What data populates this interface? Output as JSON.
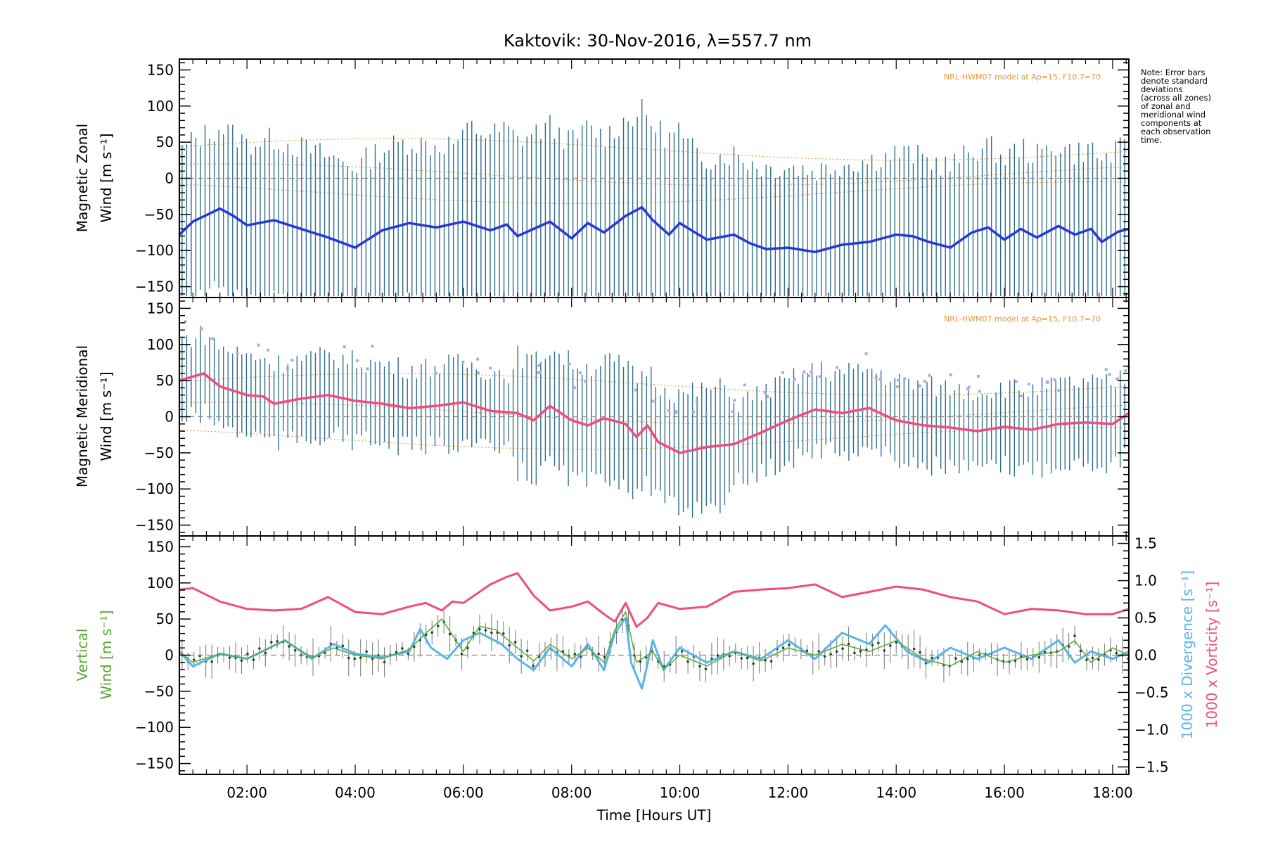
{
  "chart_data": {
    "type": "line",
    "title": "Kaktovik: 30-Nov-2016, λ=557.7 nm",
    "xlabel": "Time [Hours UT]",
    "x_ticks": [
      "02:00",
      "04:00",
      "06:00",
      "08:00",
      "10:00",
      "12:00",
      "14:00",
      "16:00",
      "18:00"
    ],
    "xlim": [
      0.75,
      18.3
    ],
    "note": [
      "Note: Error bars",
      "denote standard",
      "deviations",
      "(across all zones)",
      "of zonal and",
      "meridional wind",
      "components at",
      "each observation",
      "time."
    ],
    "panels": [
      {
        "id": "zonal",
        "ylabel_lines": [
          "Magnetic Zonal",
          "Wind [m s⁻¹]"
        ],
        "ylim": [
          -165,
          165
        ],
        "y_ticks": [
          150,
          100,
          50,
          0,
          -50,
          -100,
          -150
        ],
        "model_note": "NRL-HWM07 model at Ap=15, F10.7=70",
        "series": [
          {
            "color": "#2638d8",
            "x": [
              0.75,
              1.0,
              1.5,
              1.75,
              2.0,
              2.5,
              3.0,
              3.5,
              4.0,
              4.5,
              5.0,
              5.5,
              6.0,
              6.5,
              6.8,
              7.0,
              7.3,
              7.6,
              8.0,
              8.3,
              8.6,
              9.0,
              9.3,
              9.5,
              9.8,
              10.0,
              10.5,
              11.0,
              11.3,
              11.6,
              12.0,
              12.5,
              13.0,
              13.5,
              14.0,
              14.3,
              14.6,
              15.0,
              15.4,
              15.7,
              16.0,
              16.3,
              16.6,
              17.0,
              17.3,
              17.6,
              17.8,
              18.1,
              18.3
            ],
            "values": [
              -78,
              -60,
              -42,
              -52,
              -65,
              -58,
              -70,
              -82,
              -96,
              -72,
              -62,
              -68,
              -60,
              -72,
              -64,
              -80,
              -70,
              -60,
              -83,
              -62,
              -75,
              -52,
              -40,
              -58,
              -78,
              -62,
              -85,
              -78,
              -90,
              -98,
              -96,
              -102,
              -92,
              -88,
              -78,
              -80,
              -88,
              -96,
              -75,
              -68,
              -85,
              -70,
              -82,
              -66,
              -78,
              -70,
              -88,
              -74,
              -70
            ]
          }
        ]
      },
      {
        "id": "meridional",
        "ylabel_lines": [
          "Magnetic Meridional",
          "Wind [m s⁻¹]"
        ],
        "ylim": [
          -165,
          165
        ],
        "y_ticks": [
          150,
          100,
          50,
          0,
          -50,
          -100,
          -150
        ],
        "model_note": "NRL-HWM07 model at Ap=15, F10.7=70",
        "series": [
          {
            "color": "#f24b7d",
            "x": [
              0.75,
              1.2,
              1.5,
              2.0,
              2.3,
              2.5,
              3.0,
              3.5,
              4.0,
              4.5,
              5.0,
              5.5,
              6.0,
              6.5,
              7.0,
              7.3,
              7.6,
              8.0,
              8.3,
              8.6,
              9.0,
              9.2,
              9.4,
              9.6,
              10.0,
              10.5,
              11.0,
              11.5,
              12.0,
              12.5,
              13.0,
              13.5,
              14.0,
              14.5,
              15.0,
              15.5,
              16.0,
              16.5,
              17.0,
              17.5,
              18.0,
              18.3
            ],
            "values": [
              50,
              60,
              42,
              30,
              28,
              18,
              25,
              30,
              22,
              18,
              12,
              15,
              20,
              8,
              5,
              -5,
              15,
              -5,
              -12,
              -2,
              -10,
              -28,
              -12,
              -35,
              -50,
              -42,
              -38,
              -22,
              -5,
              10,
              5,
              12,
              -5,
              -12,
              -15,
              -20,
              -14,
              -18,
              -10,
              -8,
              -10,
              5
            ]
          }
        ]
      },
      {
        "id": "vertical",
        "ylabel_lines": [
          "Vertical",
          "Wind [m s⁻¹]"
        ],
        "ylabel_color": "#5aa832",
        "ylim": [
          -165,
          165
        ],
        "y_ticks": [
          150,
          100,
          50,
          0,
          -50,
          -100,
          -150
        ],
        "right_axis": {
          "labels": [
            "1000 x Divergence [s⁻¹]",
            "1000 x Vorticity [s⁻¹]"
          ],
          "label_colors": [
            "#5ab4e6",
            "#f24b7d"
          ],
          "ylim": [
            -1.6,
            1.6
          ],
          "ticks": [
            "1.5",
            "1.0",
            "0.5",
            "0.0",
            "−0.5",
            "−1.0",
            "−1.5"
          ],
          "tick_values": [
            1.5,
            1.0,
            0.5,
            0.0,
            -0.5,
            -1.0,
            -1.5
          ]
        },
        "series": [
          {
            "color": "#f24b7d",
            "axis": "right",
            "x": [
              0.75,
              1.0,
              1.5,
              2.0,
              2.5,
              3.0,
              3.5,
              4.0,
              4.5,
              5.0,
              5.3,
              5.6,
              5.8,
              6.0,
              6.5,
              6.8,
              7.0,
              7.3,
              7.6,
              8.0,
              8.3,
              8.6,
              8.8,
              9.0,
              9.2,
              9.4,
              9.6,
              10.0,
              10.5,
              11.0,
              11.5,
              12.0,
              12.5,
              13.0,
              13.5,
              14.0,
              14.5,
              15.0,
              15.5,
              16.0,
              16.5,
              17.0,
              17.5,
              18.0,
              18.3
            ],
            "values": [
              0.88,
              0.9,
              0.72,
              0.62,
              0.6,
              0.62,
              0.78,
              0.58,
              0.55,
              0.65,
              0.7,
              0.6,
              0.72,
              0.7,
              0.95,
              1.05,
              1.1,
              0.8,
              0.6,
              0.65,
              0.72,
              0.55,
              0.45,
              0.7,
              0.38,
              0.5,
              0.7,
              0.62,
              0.65,
              0.85,
              0.88,
              0.9,
              0.95,
              0.78,
              0.85,
              0.92,
              0.88,
              0.78,
              0.72,
              0.55,
              0.62,
              0.6,
              0.55,
              0.55,
              0.62
            ]
          },
          {
            "color": "#5ab4e6",
            "axis": "right",
            "x": [
              0.75,
              1.0,
              1.5,
              2.0,
              2.7,
              3.2,
              3.6,
              4.0,
              4.5,
              5.0,
              5.2,
              5.4,
              5.7,
              6.0,
              6.3,
              6.7,
              7.0,
              7.3,
              7.6,
              8.0,
              8.3,
              8.6,
              8.8,
              9.0,
              9.1,
              9.3,
              9.5,
              9.7,
              10.0,
              10.5,
              11.0,
              11.5,
              12.0,
              12.5,
              13.0,
              13.5,
              13.8,
              14.2,
              14.6,
              15.0,
              15.5,
              16.0,
              16.5,
              17.0,
              17.3,
              17.6,
              18.0,
              18.3
            ],
            "values": [
              0.05,
              -0.15,
              0.02,
              -0.05,
              0.2,
              -0.05,
              0.15,
              0.02,
              -0.03,
              0.05,
              0.35,
              0.1,
              -0.05,
              0.2,
              0.3,
              0.15,
              -0.05,
              -0.2,
              0.1,
              -0.15,
              0.15,
              -0.2,
              0.3,
              0.5,
              -0.1,
              -0.45,
              0.2,
              -0.2,
              0.1,
              -0.1,
              0.05,
              -0.05,
              0.2,
              -0.05,
              0.3,
              0.15,
              0.4,
              0.05,
              -0.1,
              0.1,
              -0.05,
              0.1,
              -0.05,
              0.2,
              -0.1,
              0.05,
              -0.05,
              0.05
            ]
          },
          {
            "color": "#5aa832",
            "axis": "left",
            "x": [
              0.75,
              1.0,
              1.5,
              2.0,
              2.7,
              3.2,
              3.6,
              4.0,
              4.5,
              5.0,
              5.3,
              5.6,
              6.0,
              6.3,
              6.6,
              7.0,
              7.3,
              7.6,
              8.0,
              8.3,
              8.6,
              8.8,
              9.0,
              9.2,
              9.5,
              9.7,
              10.0,
              10.5,
              11.0,
              11.5,
              12.0,
              12.5,
              13.0,
              13.5,
              14.0,
              14.5,
              15.0,
              15.5,
              16.0,
              16.5,
              17.0,
              17.3,
              17.6,
              18.0,
              18.3
            ],
            "values": [
              5,
              -10,
              2,
              -5,
              20,
              -3,
              10,
              0,
              -5,
              8,
              30,
              50,
              5,
              40,
              35,
              10,
              -8,
              15,
              -5,
              10,
              -10,
              35,
              60,
              -10,
              5,
              -20,
              0,
              -15,
              5,
              -8,
              10,
              0,
              15,
              5,
              20,
              -5,
              -15,
              5,
              -10,
              0,
              5,
              20,
              -10,
              10,
              0
            ]
          }
        ]
      }
    ]
  }
}
